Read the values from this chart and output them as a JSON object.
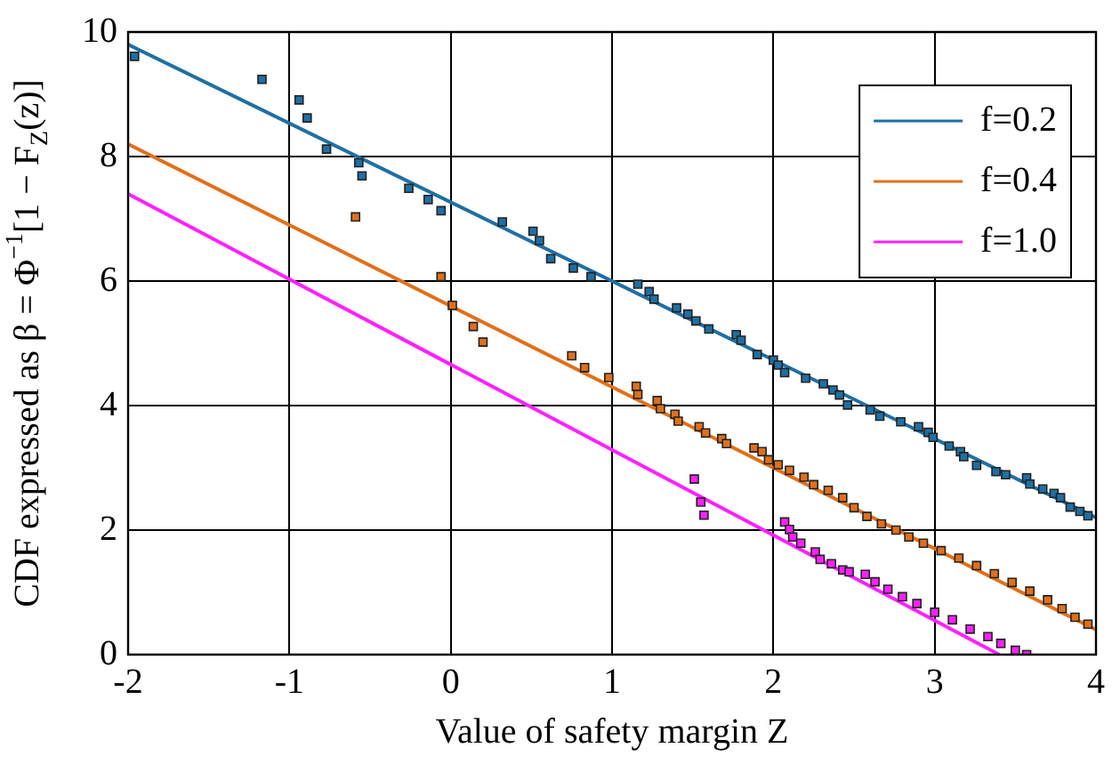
{
  "chart_data": {
    "type": "scatter",
    "xlabel": "Value of safety margin Z",
    "ylabel": "CDF expressed as β = Φ$^{−1}$[1 − F$_{Z}$(z)]",
    "xlim": [
      -2,
      4
    ],
    "xticks": [
      -2,
      -1,
      0,
      1,
      2,
      3,
      4
    ],
    "ylim": [
      0,
      10
    ],
    "yticks": [
      0,
      2,
      4,
      6,
      8,
      10
    ],
    "grid": true,
    "legend": "top right",
    "series": [
      {
        "type": "line",
        "name": "f=0.2",
        "color": "#1f6fa3",
        "x": [
          -2,
          4
        ],
        "values": [
          9.8,
          2.2
        ]
      },
      {
        "type": "line",
        "name": "f=0.4",
        "color": "#e0701a",
        "x": [
          -2,
          4
        ],
        "values": [
          8.2,
          0.4
        ]
      },
      {
        "type": "line",
        "name": "f=1.0",
        "color": "#ff20ff",
        "x": [
          -2,
          3.4
        ],
        "values": [
          7.4,
          0
        ]
      },
      {
        "type": "scatter",
        "marker": "square",
        "color": "#1f6fa3",
        "x": [
          -1.96,
          -1.17,
          -0.94,
          -0.89,
          -0.77,
          -0.57,
          -0.55,
          -0.26,
          -0.14,
          -0.06,
          0.32,
          0.51,
          0.55,
          0.62,
          0.76,
          0.87,
          1.16,
          1.23,
          1.26,
          1.4,
          1.47,
          1.52,
          1.6,
          1.77,
          1.8,
          1.9,
          2.0,
          2.03,
          2.07,
          2.2,
          2.31,
          2.37,
          2.41,
          2.46,
          2.6,
          2.66,
          2.79,
          2.9,
          2.96,
          2.99,
          3.09,
          3.16,
          3.18,
          3.26,
          3.38,
          3.44,
          3.57,
          3.59,
          3.67,
          3.74,
          3.78,
          3.84,
          3.9,
          3.95
        ],
        "values": [
          9.61,
          9.24,
          8.91,
          8.62,
          8.12,
          7.9,
          7.69,
          7.49,
          7.31,
          7.13,
          6.95,
          6.8,
          6.65,
          6.36,
          6.21,
          6.07,
          5.95,
          5.83,
          5.71,
          5.57,
          5.47,
          5.36,
          5.23,
          5.14,
          5.05,
          4.82,
          4.73,
          4.65,
          4.53,
          4.44,
          4.35,
          4.25,
          4.17,
          4.01,
          3.93,
          3.83,
          3.74,
          3.66,
          3.57,
          3.49,
          3.35,
          3.26,
          3.18,
          3.04,
          2.94,
          2.89,
          2.84,
          2.74,
          2.66,
          2.59,
          2.52,
          2.37,
          2.3,
          2.23
        ]
      },
      {
        "type": "scatter",
        "marker": "square",
        "color": "#e0701a",
        "x": [
          -0.59,
          -0.06,
          0.01,
          0.14,
          0.2,
          0.75,
          0.83,
          0.98,
          1.15,
          1.16,
          1.28,
          1.3,
          1.39,
          1.41,
          1.54,
          1.58,
          1.68,
          1.71,
          1.88,
          1.93,
          1.97,
          2.03,
          2.1,
          2.19,
          2.25,
          2.34,
          2.43,
          2.5,
          2.58,
          2.67,
          2.76,
          2.84,
          2.93,
          3.04,
          3.15,
          3.26,
          3.37,
          3.48,
          3.59,
          3.7,
          3.79,
          3.87,
          3.95
        ],
        "values": [
          7.03,
          6.07,
          5.61,
          5.27,
          5.02,
          4.8,
          4.61,
          4.45,
          4.31,
          4.18,
          4.08,
          3.95,
          3.86,
          3.75,
          3.66,
          3.56,
          3.47,
          3.39,
          3.32,
          3.26,
          3.13,
          3.05,
          2.96,
          2.85,
          2.73,
          2.64,
          2.52,
          2.36,
          2.22,
          2.1,
          2.0,
          1.89,
          1.79,
          1.67,
          1.55,
          1.43,
          1.3,
          1.16,
          1.02,
          0.88,
          0.74,
          0.6,
          0.49
        ]
      },
      {
        "type": "scatter",
        "marker": "square",
        "color": "#ff20ff",
        "x": [
          1.51,
          1.55,
          1.57,
          2.07,
          2.1,
          2.12,
          2.17,
          2.26,
          2.29,
          2.36,
          2.43,
          2.47,
          2.57,
          2.63,
          2.71,
          2.8,
          2.89,
          3.0,
          3.11,
          3.22,
          3.33,
          3.41,
          3.5,
          3.57
        ],
        "values": [
          2.82,
          2.45,
          2.24,
          2.13,
          2.01,
          1.89,
          1.79,
          1.65,
          1.53,
          1.46,
          1.36,
          1.33,
          1.29,
          1.17,
          1.05,
          0.93,
          0.82,
          0.68,
          0.56,
          0.41,
          0.29,
          0.18,
          0.07,
          0.0
        ]
      }
    ]
  }
}
